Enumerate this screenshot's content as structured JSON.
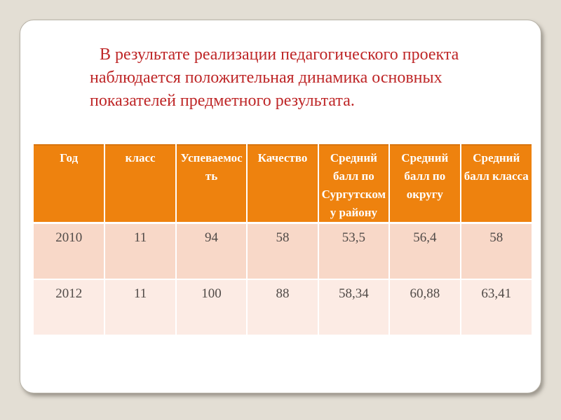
{
  "slide": {
    "background_color": "#e3ded4",
    "card_color": "#ffffff",
    "accent_orange": "#ee820e",
    "row_color_1": "#f8d8c8",
    "row_color_2": "#fcebe4",
    "text_red": "#be2627"
  },
  "intro": {
    "text": "В результате реализации педагогического проекта наблюдается положительная динамика основных показателей предметного результата.",
    "lines": [
      "В результате реализации педагогического проекта",
      "наблюдается положительная динамика основных",
      "показателей предметного результата."
    ]
  },
  "table": {
    "headers": [
      "Год",
      "класс",
      "Успеваемость",
      "Качество",
      "Средний балл по Сургутскому району",
      "Средний балл по округу",
      "Средний балл класса"
    ],
    "rows": [
      [
        "2010",
        "11",
        "94",
        "58",
        "53,5",
        "56,4",
        "58"
      ],
      [
        "2012",
        "11",
        "100",
        "88",
        "58,34",
        "60,88",
        "63,41"
      ]
    ]
  }
}
